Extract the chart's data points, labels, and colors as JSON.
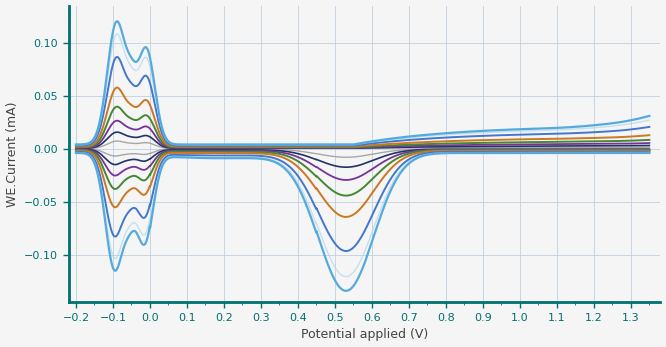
{
  "title": "",
  "xlabel": "Potential applied (V)",
  "ylabel": "WE.Current (mA)",
  "xlim": [
    -0.22,
    1.38
  ],
  "ylim": [
    -0.145,
    0.135
  ],
  "yticks": [
    -0.1,
    -0.05,
    0,
    0.05,
    0.1
  ],
  "xticks": [
    -0.2,
    -0.1,
    0.0,
    0.1,
    0.2,
    0.3,
    0.4,
    0.5,
    0.6,
    0.7,
    0.8,
    0.9,
    1.0,
    1.1,
    1.2,
    1.3
  ],
  "background_color": "#f5f5f5",
  "plot_bg_color": "#f5f5f5",
  "grid_color": "#c0d0e0",
  "spine_color": "#007070",
  "tick_color": "#007070",
  "label_color": "#444444",
  "colors": {
    "lightblue_large": "#55aadd",
    "lightblue_thin": "#aad4ee",
    "blue_medium": "#4477cc",
    "orange": "#cc7722",
    "green": "#448833",
    "purple": "#773399",
    "darknavy": "#223366",
    "gray": "#999999"
  }
}
